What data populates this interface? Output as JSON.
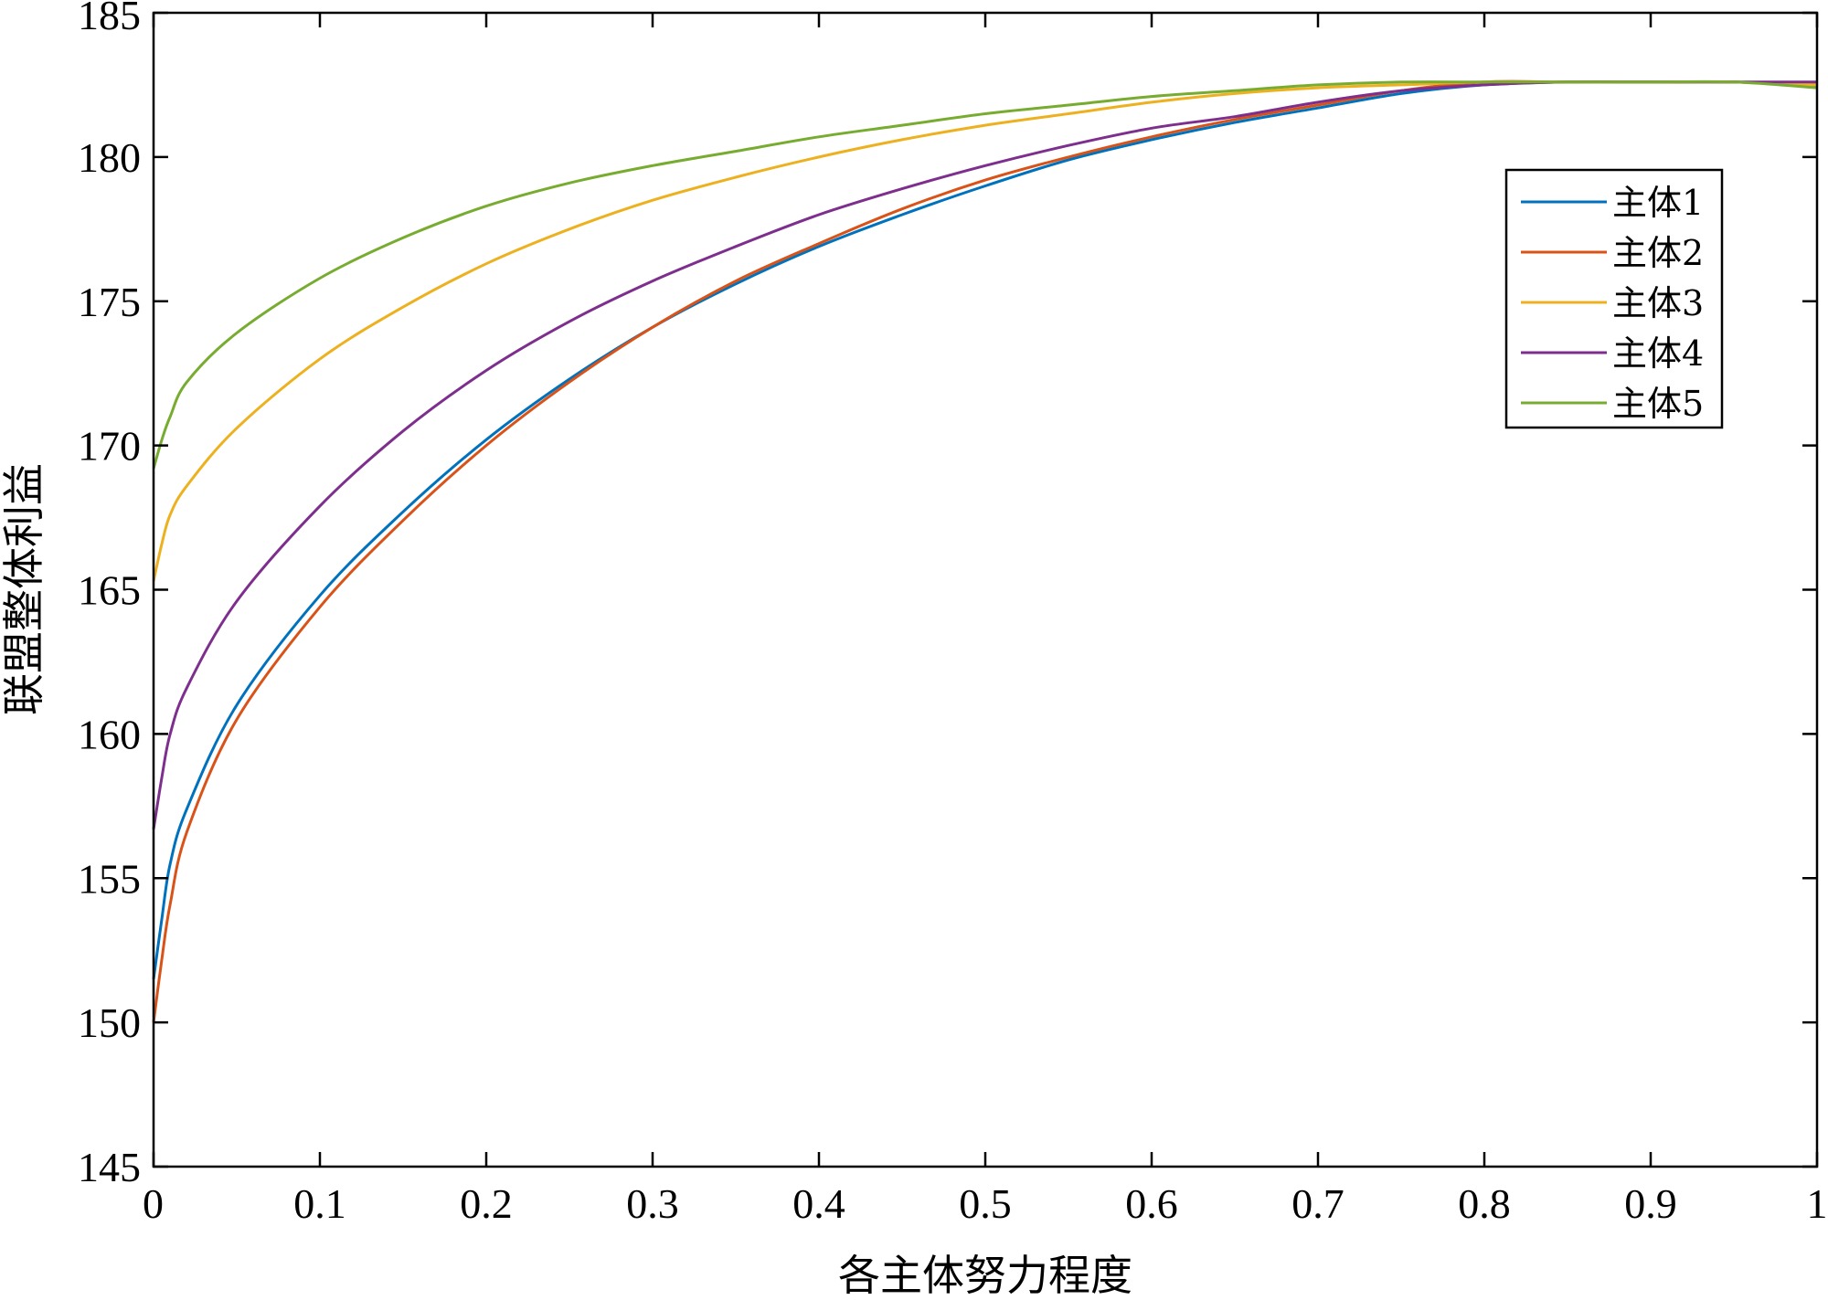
{
  "chart_data": {
    "type": "line",
    "xlabel": "各主体努力程度",
    "ylabel": "联盟整体利益",
    "xlim": [
      0,
      1
    ],
    "ylim": [
      145,
      185
    ],
    "xticks": [
      0,
      0.1,
      0.2,
      0.3,
      0.4,
      0.5,
      0.6,
      0.7,
      0.8,
      0.9,
      1
    ],
    "xtick_labels": [
      "0",
      "0.1",
      "0.2",
      "0.3",
      "0.4",
      "0.5",
      "0.6",
      "0.7",
      "0.8",
      "0.9",
      "1"
    ],
    "yticks": [
      145,
      150,
      155,
      160,
      165,
      170,
      175,
      180,
      185
    ],
    "ytick_labels": [
      "145",
      "150",
      "155",
      "160",
      "165",
      "170",
      "175",
      "180",
      "185"
    ],
    "grid": false,
    "legend_position": "top-right",
    "x": [
      0,
      0.005,
      0.01,
      0.02,
      0.05,
      0.1,
      0.15,
      0.2,
      0.25,
      0.3,
      0.35,
      0.4,
      0.45,
      0.5,
      0.55,
      0.6,
      0.65,
      0.7,
      0.75,
      0.8,
      0.85,
      0.9,
      0.95,
      1
    ],
    "series": [
      {
        "name": "主体1",
        "color": "#0072BD",
        "values": [
          151.5,
          153.6,
          155.5,
          157.4,
          161.0,
          164.8,
          167.7,
          170.2,
          172.3,
          174.1,
          175.6,
          176.9,
          178.0,
          179.0,
          179.9,
          180.6,
          181.2,
          181.7,
          182.2,
          182.5,
          182.6,
          182.6,
          182.6,
          182.5
        ]
      },
      {
        "name": "主体2",
        "color": "#D95319",
        "values": [
          150.0,
          152.2,
          154.1,
          156.6,
          160.5,
          164.4,
          167.4,
          170.0,
          172.2,
          174.1,
          175.7,
          177.0,
          178.2,
          179.2,
          180.0,
          180.7,
          181.3,
          181.8,
          182.3,
          182.6,
          182.6,
          182.6,
          182.6,
          182.5
        ]
      },
      {
        "name": "主体3",
        "color": "#EDB120",
        "values": [
          165.3,
          166.6,
          167.6,
          168.6,
          170.6,
          173.0,
          174.8,
          176.3,
          177.5,
          178.5,
          179.3,
          180.0,
          180.6,
          181.1,
          181.5,
          181.9,
          182.2,
          182.4,
          182.5,
          182.6,
          182.6,
          182.6,
          182.6,
          182.5
        ]
      },
      {
        "name": "主体4",
        "color": "#7E2F8E",
        "values": [
          156.7,
          158.5,
          160.0,
          161.6,
          164.6,
          167.9,
          170.5,
          172.6,
          174.3,
          175.7,
          176.9,
          178.0,
          178.9,
          179.7,
          180.4,
          181.0,
          181.4,
          181.9,
          182.3,
          182.5,
          182.6,
          182.6,
          182.6,
          182.6
        ]
      },
      {
        "name": "主体5",
        "color": "#77AC30",
        "values": [
          169.2,
          170.2,
          171.0,
          172.2,
          173.9,
          175.8,
          177.2,
          178.3,
          179.1,
          179.7,
          180.2,
          180.7,
          181.1,
          181.5,
          181.8,
          182.1,
          182.3,
          182.5,
          182.6,
          182.6,
          182.6,
          182.6,
          182.6,
          182.4
        ]
      }
    ]
  }
}
